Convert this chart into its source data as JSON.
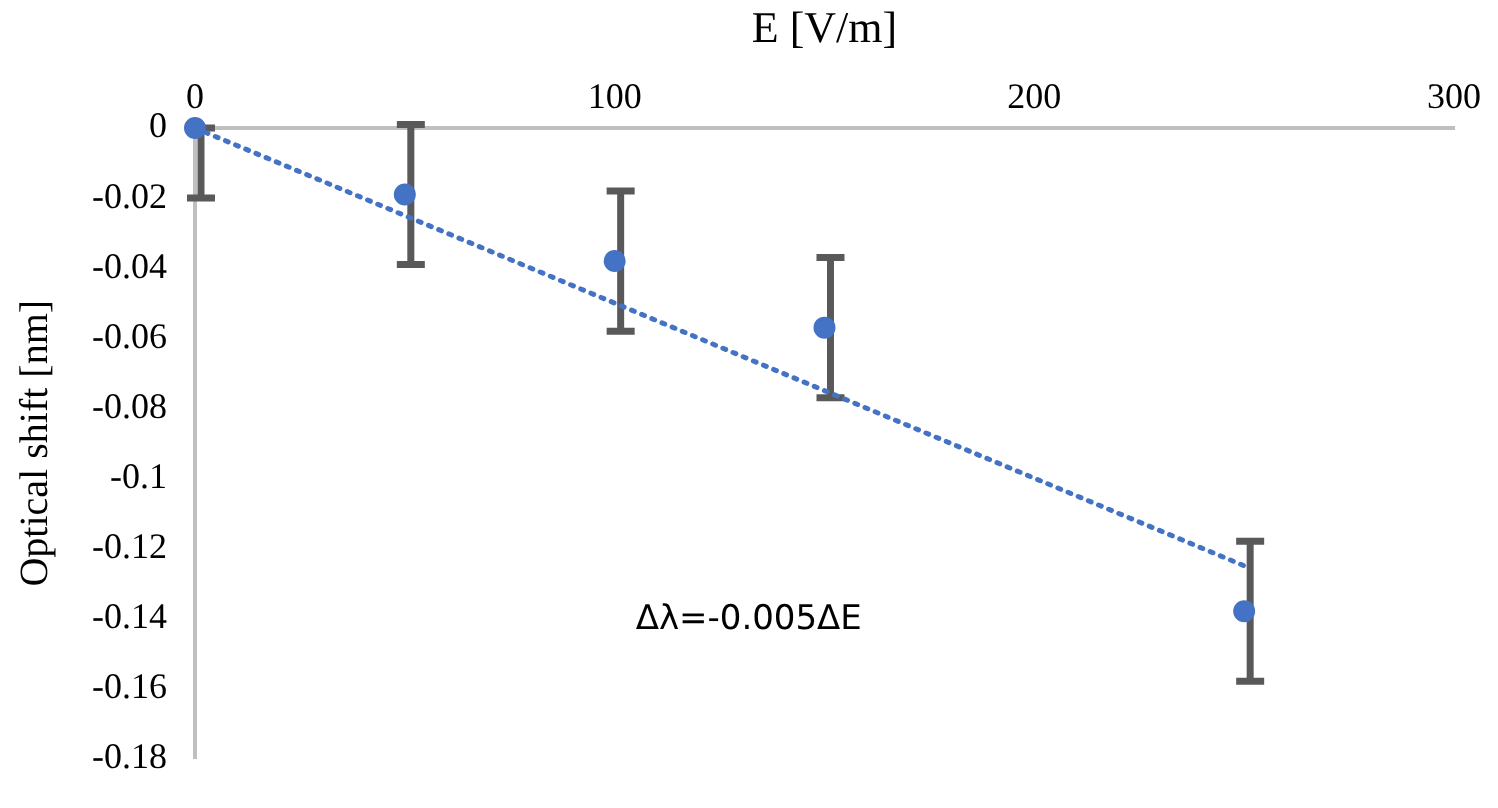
{
  "chart_data": {
    "type": "scatter",
    "xlabel": "E [V/m]",
    "ylabel": "Optical shift [nm]",
    "xlim": [
      0,
      300
    ],
    "xticks": [
      0,
      100,
      200,
      300
    ],
    "ylim": [
      -0.18,
      0
    ],
    "yticks": [
      0,
      -0.02,
      -0.04,
      -0.06,
      -0.08,
      -0.1,
      -0.12,
      -0.14,
      -0.16,
      -0.18
    ],
    "grid": false,
    "legend": false,
    "marker": "circle",
    "annotations": [
      "Δλ=-0.005ΔE"
    ],
    "series": [
      {
        "type": "scatter",
        "color": "#4472c4",
        "x": [
          0,
          50,
          100,
          150,
          250
        ],
        "values": [
          0,
          -0.019,
          -0.038,
          -0.057,
          -0.138
        ],
        "errors": [
          [
            -0.02,
            0
          ],
          0.02,
          0.02,
          0.02,
          0.02
        ]
      },
      {
        "type": "line",
        "color": "#4472c4",
        "x": [
          0,
          250
        ],
        "values": [
          0,
          -0.125
        ],
        "marker": "none",
        "line_style": "dotted"
      }
    ]
  }
}
